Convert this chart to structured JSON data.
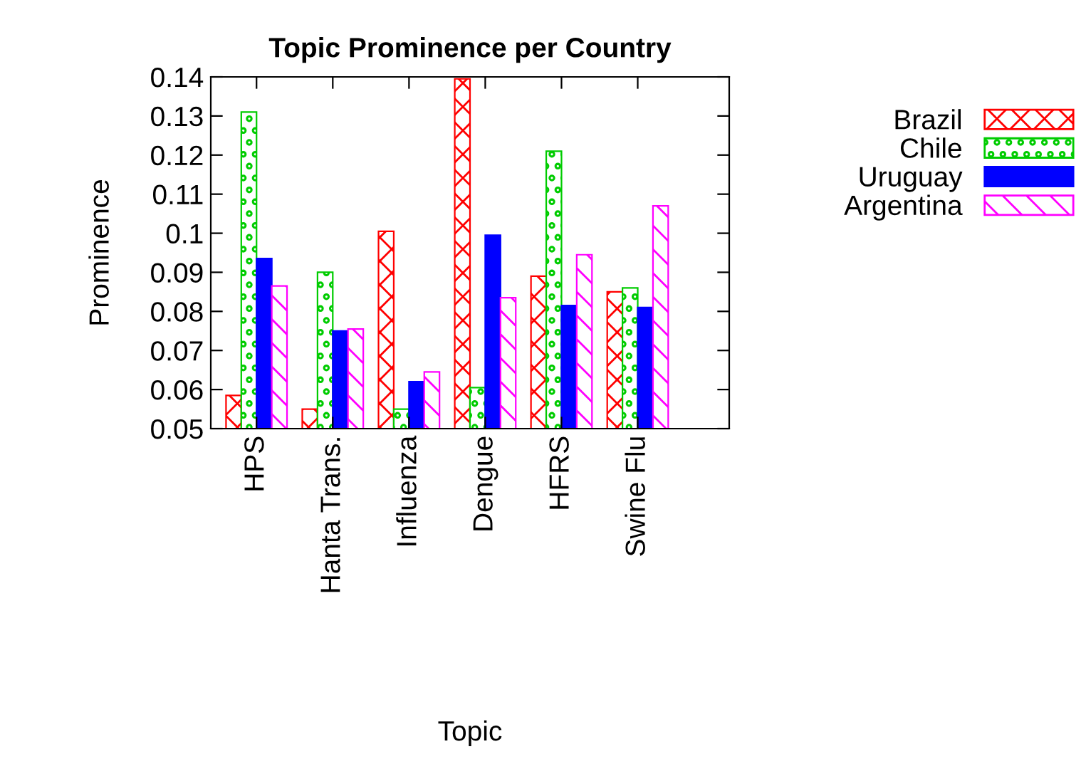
{
  "chart_data": {
    "type": "bar",
    "title": "Topic Prominence per Country",
    "xlabel": "Topic",
    "ylabel": "Prominence",
    "categories": [
      "HPS",
      "Hanta Trans.",
      "Influenza",
      "Dengue",
      "HFRS",
      "Swine Flu"
    ],
    "series": [
      {
        "name": "Brazil",
        "color": "#ff0000",
        "values": [
          0.0585,
          0.055,
          0.1005,
          0.1395,
          0.089,
          0.085
        ]
      },
      {
        "name": "Chile",
        "color": "#00cc00",
        "values": [
          0.131,
          0.09,
          0.055,
          0.0605,
          0.121,
          0.086
        ]
      },
      {
        "name": "Uruguay",
        "color": "#0000ff",
        "values": [
          0.0935,
          0.075,
          0.062,
          0.0995,
          0.0815,
          0.081
        ]
      },
      {
        "name": "Argentina",
        "color": "#ff00ff",
        "values": [
          0.0865,
          0.0755,
          0.0645,
          0.0835,
          0.0945,
          0.107
        ]
      }
    ],
    "ylim": [
      0.05,
      0.14
    ],
    "yticks": [
      0.05,
      0.06,
      0.07,
      0.08,
      0.09,
      {
        "value": 0.1,
        "label": "0.1"
      },
      0.11,
      0.12,
      0.13,
      0.14
    ],
    "grid": false,
    "legend": "right"
  }
}
